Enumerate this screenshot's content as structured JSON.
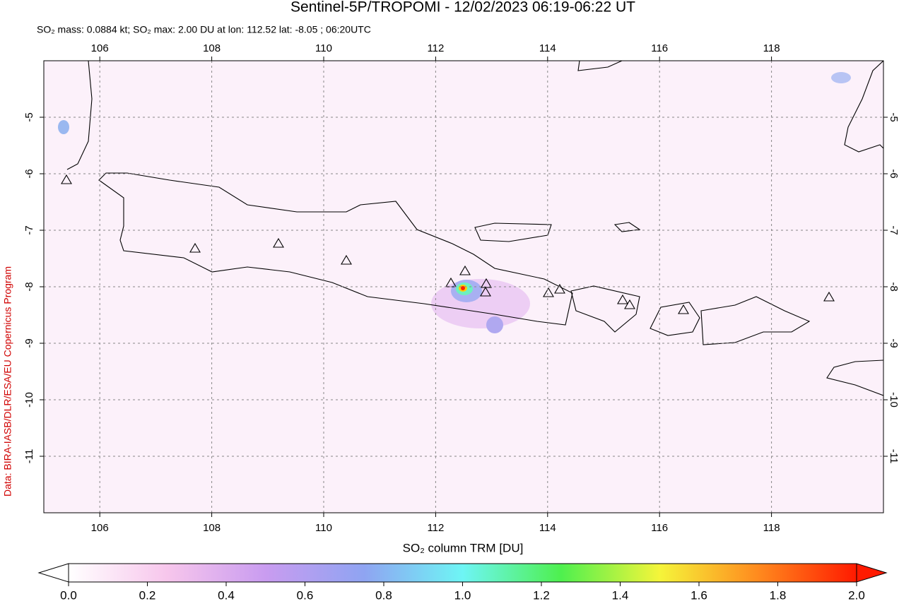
{
  "title": "Sentinel-5P/TROPOMI - 12/02/2023 06:19-06:22 UT",
  "subtitle": "SO₂ mass: 0.0884 kt; SO₂ max: 2.00 DU at lon: 112.52 lat: -8.05 ; 06:20UTC",
  "credit": "Data: BIRA-IASB/DLR/ESA/EU Copernicus Program",
  "chart_data": {
    "type": "map",
    "xlim": [
      105,
      120
    ],
    "ylim": [
      -12,
      -4
    ],
    "xticks": [
      106,
      108,
      110,
      112,
      114,
      116,
      118
    ],
    "yticks": [
      -5,
      -6,
      -7,
      -8,
      -9,
      -10,
      -11
    ],
    "grid": true,
    "colorbar": {
      "label": "SO₂ column TRM [DU]",
      "lim": [
        0,
        2
      ],
      "colors": [
        "#ffffff",
        "#f7c6ec",
        "#c99cf0",
        "#8fa4f2",
        "#6ef5f5",
        "#4ef04e",
        "#f5f53a",
        "#ff8a1e",
        "#ff1a00"
      ],
      "ticks": [
        {
          "value": 0,
          "label": "0.0"
        },
        {
          "value": 0.2,
          "label": "0.2"
        },
        {
          "value": 0.4,
          "label": "0.4"
        },
        {
          "value": 0.6,
          "label": "0.6"
        },
        {
          "value": 0.8,
          "label": "0.8"
        },
        {
          "value": 1,
          "label": "1.0"
        },
        {
          "value": 1.2,
          "label": "1.2"
        },
        {
          "value": 1.4,
          "label": "1.4"
        },
        {
          "value": 1.6,
          "label": "1.6"
        },
        {
          "value": 1.8,
          "label": "1.8"
        },
        {
          "value": 2,
          "label": "2.0"
        }
      ]
    }
  }
}
